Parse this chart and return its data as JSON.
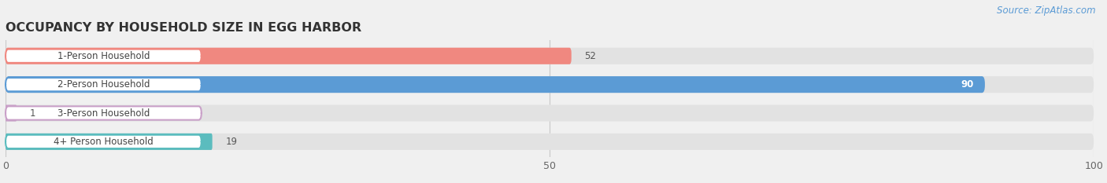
{
  "title": "OCCUPANCY BY HOUSEHOLD SIZE IN EGG HARBOR",
  "source": "Source: ZipAtlas.com",
  "categories": [
    "1-Person Household",
    "2-Person Household",
    "3-Person Household",
    "4+ Person Household"
  ],
  "values": [
    52,
    90,
    1,
    19
  ],
  "bar_colors": [
    "#f08880",
    "#5b9bd5",
    "#c9a0c8",
    "#5bbcbe"
  ],
  "xlim": [
    0,
    100
  ],
  "xticks": [
    0,
    50,
    100
  ],
  "background_color": "#f0f0f0",
  "bar_bg_color": "#e2e2e2",
  "title_fontsize": 11.5,
  "source_fontsize": 8.5,
  "label_fontsize": 8.5,
  "value_fontsize": 8.5
}
